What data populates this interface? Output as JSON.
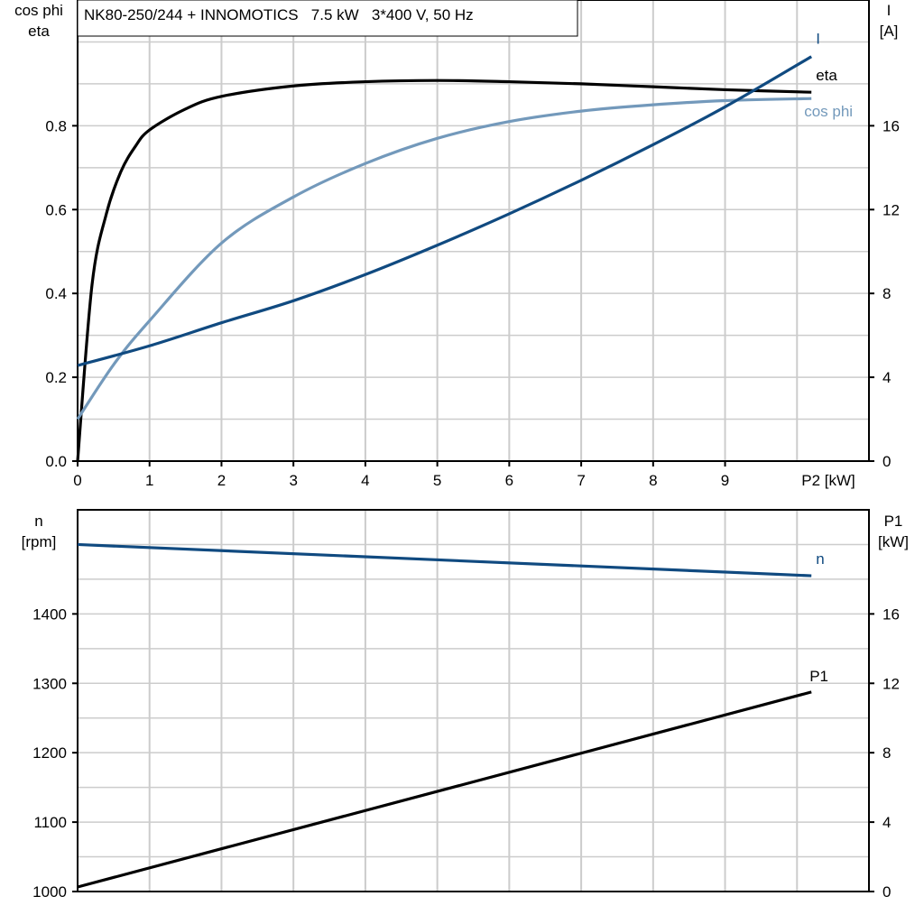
{
  "chart_data": [
    {
      "type": "line",
      "title": "NK80-250/244 + INNOMOTICS   7.5 kW   3*400 V, 50 Hz",
      "xlabel": "P2 [kW]",
      "ylabel_left": [
        "cos phi",
        "eta"
      ],
      "ylabel_right": [
        "I",
        "[A]"
      ],
      "xlim": [
        0,
        11
      ],
      "ylim_left": [
        0,
        1.1
      ],
      "ylim_right": [
        0,
        22
      ],
      "x_ticks": [
        "0",
        "1",
        "2",
        "3",
        "4",
        "5",
        "6",
        "7",
        "8",
        "9"
      ],
      "y_ticks_left": [
        "0.0",
        "0.2",
        "0.4",
        "0.6",
        "0.8"
      ],
      "y_ticks_right": [
        "0",
        "4",
        "8",
        "12",
        "16"
      ],
      "grid": true,
      "series": [
        {
          "name": "eta",
          "axis": "left",
          "color": "#000000",
          "x": [
            0,
            0.2,
            0.4,
            0.6,
            0.8,
            1,
            1.5,
            2,
            3,
            4,
            5,
            6,
            7,
            8,
            9,
            10.2
          ],
          "y": [
            0,
            0.42,
            0.59,
            0.69,
            0.75,
            0.79,
            0.84,
            0.87,
            0.895,
            0.905,
            0.908,
            0.905,
            0.9,
            0.893,
            0.886,
            0.88
          ]
        },
        {
          "name": "cos phi",
          "axis": "left",
          "color": "#7399bb",
          "x": [
            0,
            0.5,
            1,
            2,
            3,
            4,
            5,
            6,
            7,
            8,
            9,
            10.2
          ],
          "y": [
            0.1,
            0.23,
            0.335,
            0.52,
            0.63,
            0.71,
            0.77,
            0.81,
            0.835,
            0.85,
            0.86,
            0.865
          ]
        },
        {
          "name": "I",
          "axis": "right",
          "color": "#104a80",
          "x": [
            0,
            1,
            2,
            3,
            4,
            5,
            6,
            7,
            8,
            9,
            10.2
          ],
          "y": [
            4.56,
            5.5,
            6.6,
            7.65,
            8.9,
            10.3,
            11.8,
            13.4,
            15.1,
            16.9,
            19.3
          ]
        }
      ]
    },
    {
      "type": "line",
      "ylabel_left": [
        "n",
        "[rpm]"
      ],
      "ylabel_right": [
        "P1",
        "[kW]"
      ],
      "xlim": [
        0,
        11
      ],
      "ylim_left": [
        1000,
        1550
      ],
      "ylim_right": [
        0,
        22
      ],
      "y_ticks_left": [
        "1000",
        "1100",
        "1200",
        "1300",
        "1400"
      ],
      "y_ticks_right": [
        "0",
        "4",
        "8",
        "12",
        "16"
      ],
      "grid": true,
      "series": [
        {
          "name": "n",
          "axis": "left",
          "color": "#104a80",
          "x": [
            0,
            10.2
          ],
          "y": [
            1500,
            1455
          ]
        },
        {
          "name": "P1",
          "axis": "right",
          "color": "#000000",
          "x": [
            0,
            10.2
          ],
          "y": [
            0.26,
            11.5
          ]
        }
      ]
    }
  ]
}
